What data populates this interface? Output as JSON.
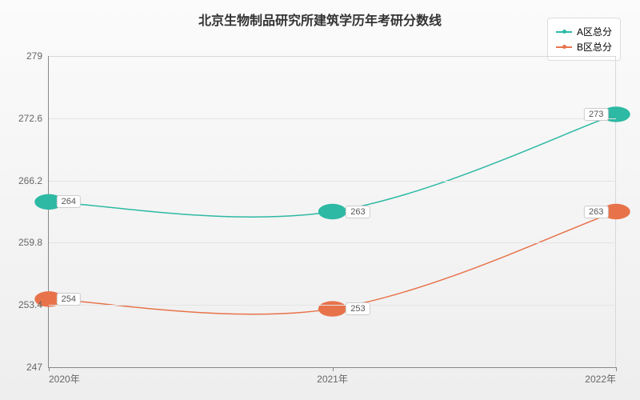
{
  "chart": {
    "title": "北京生物制品研究所建筑学历年考研分数线",
    "title_fontsize": 16,
    "title_color": "#333333",
    "background_gradient": [
      "#fbfbfb",
      "#eeeeee"
    ],
    "grid_color": "#e4e4e4",
    "axis_color": "#888888",
    "type": "line",
    "x_categories": [
      "2020年",
      "2021年",
      "2022年"
    ],
    "x_positions_pct": [
      0,
      50,
      100
    ],
    "ylim": [
      247,
      279
    ],
    "y_ticks": [
      247,
      253.4,
      259.8,
      266.2,
      272.6,
      279
    ],
    "series": [
      {
        "name": "A区总分",
        "color": "#2db9a3",
        "values": [
          264,
          263,
          273
        ],
        "labels": [
          "264",
          "263",
          "273"
        ]
      },
      {
        "name": "B区总分",
        "color": "#e8734b",
        "values": [
          254,
          253,
          263
        ],
        "labels": [
          "254",
          "253",
          "263"
        ]
      }
    ],
    "legend": {
      "position": "top-right",
      "bg": "#ffffff",
      "border": "#dddddd",
      "fontsize": 12
    },
    "datalabel_style": {
      "bg": "#ffffff",
      "border": "#cccccc",
      "fontsize": 11,
      "color": "#555555"
    },
    "tick_label_fontsize": 12,
    "tick_label_color": "#666666"
  }
}
